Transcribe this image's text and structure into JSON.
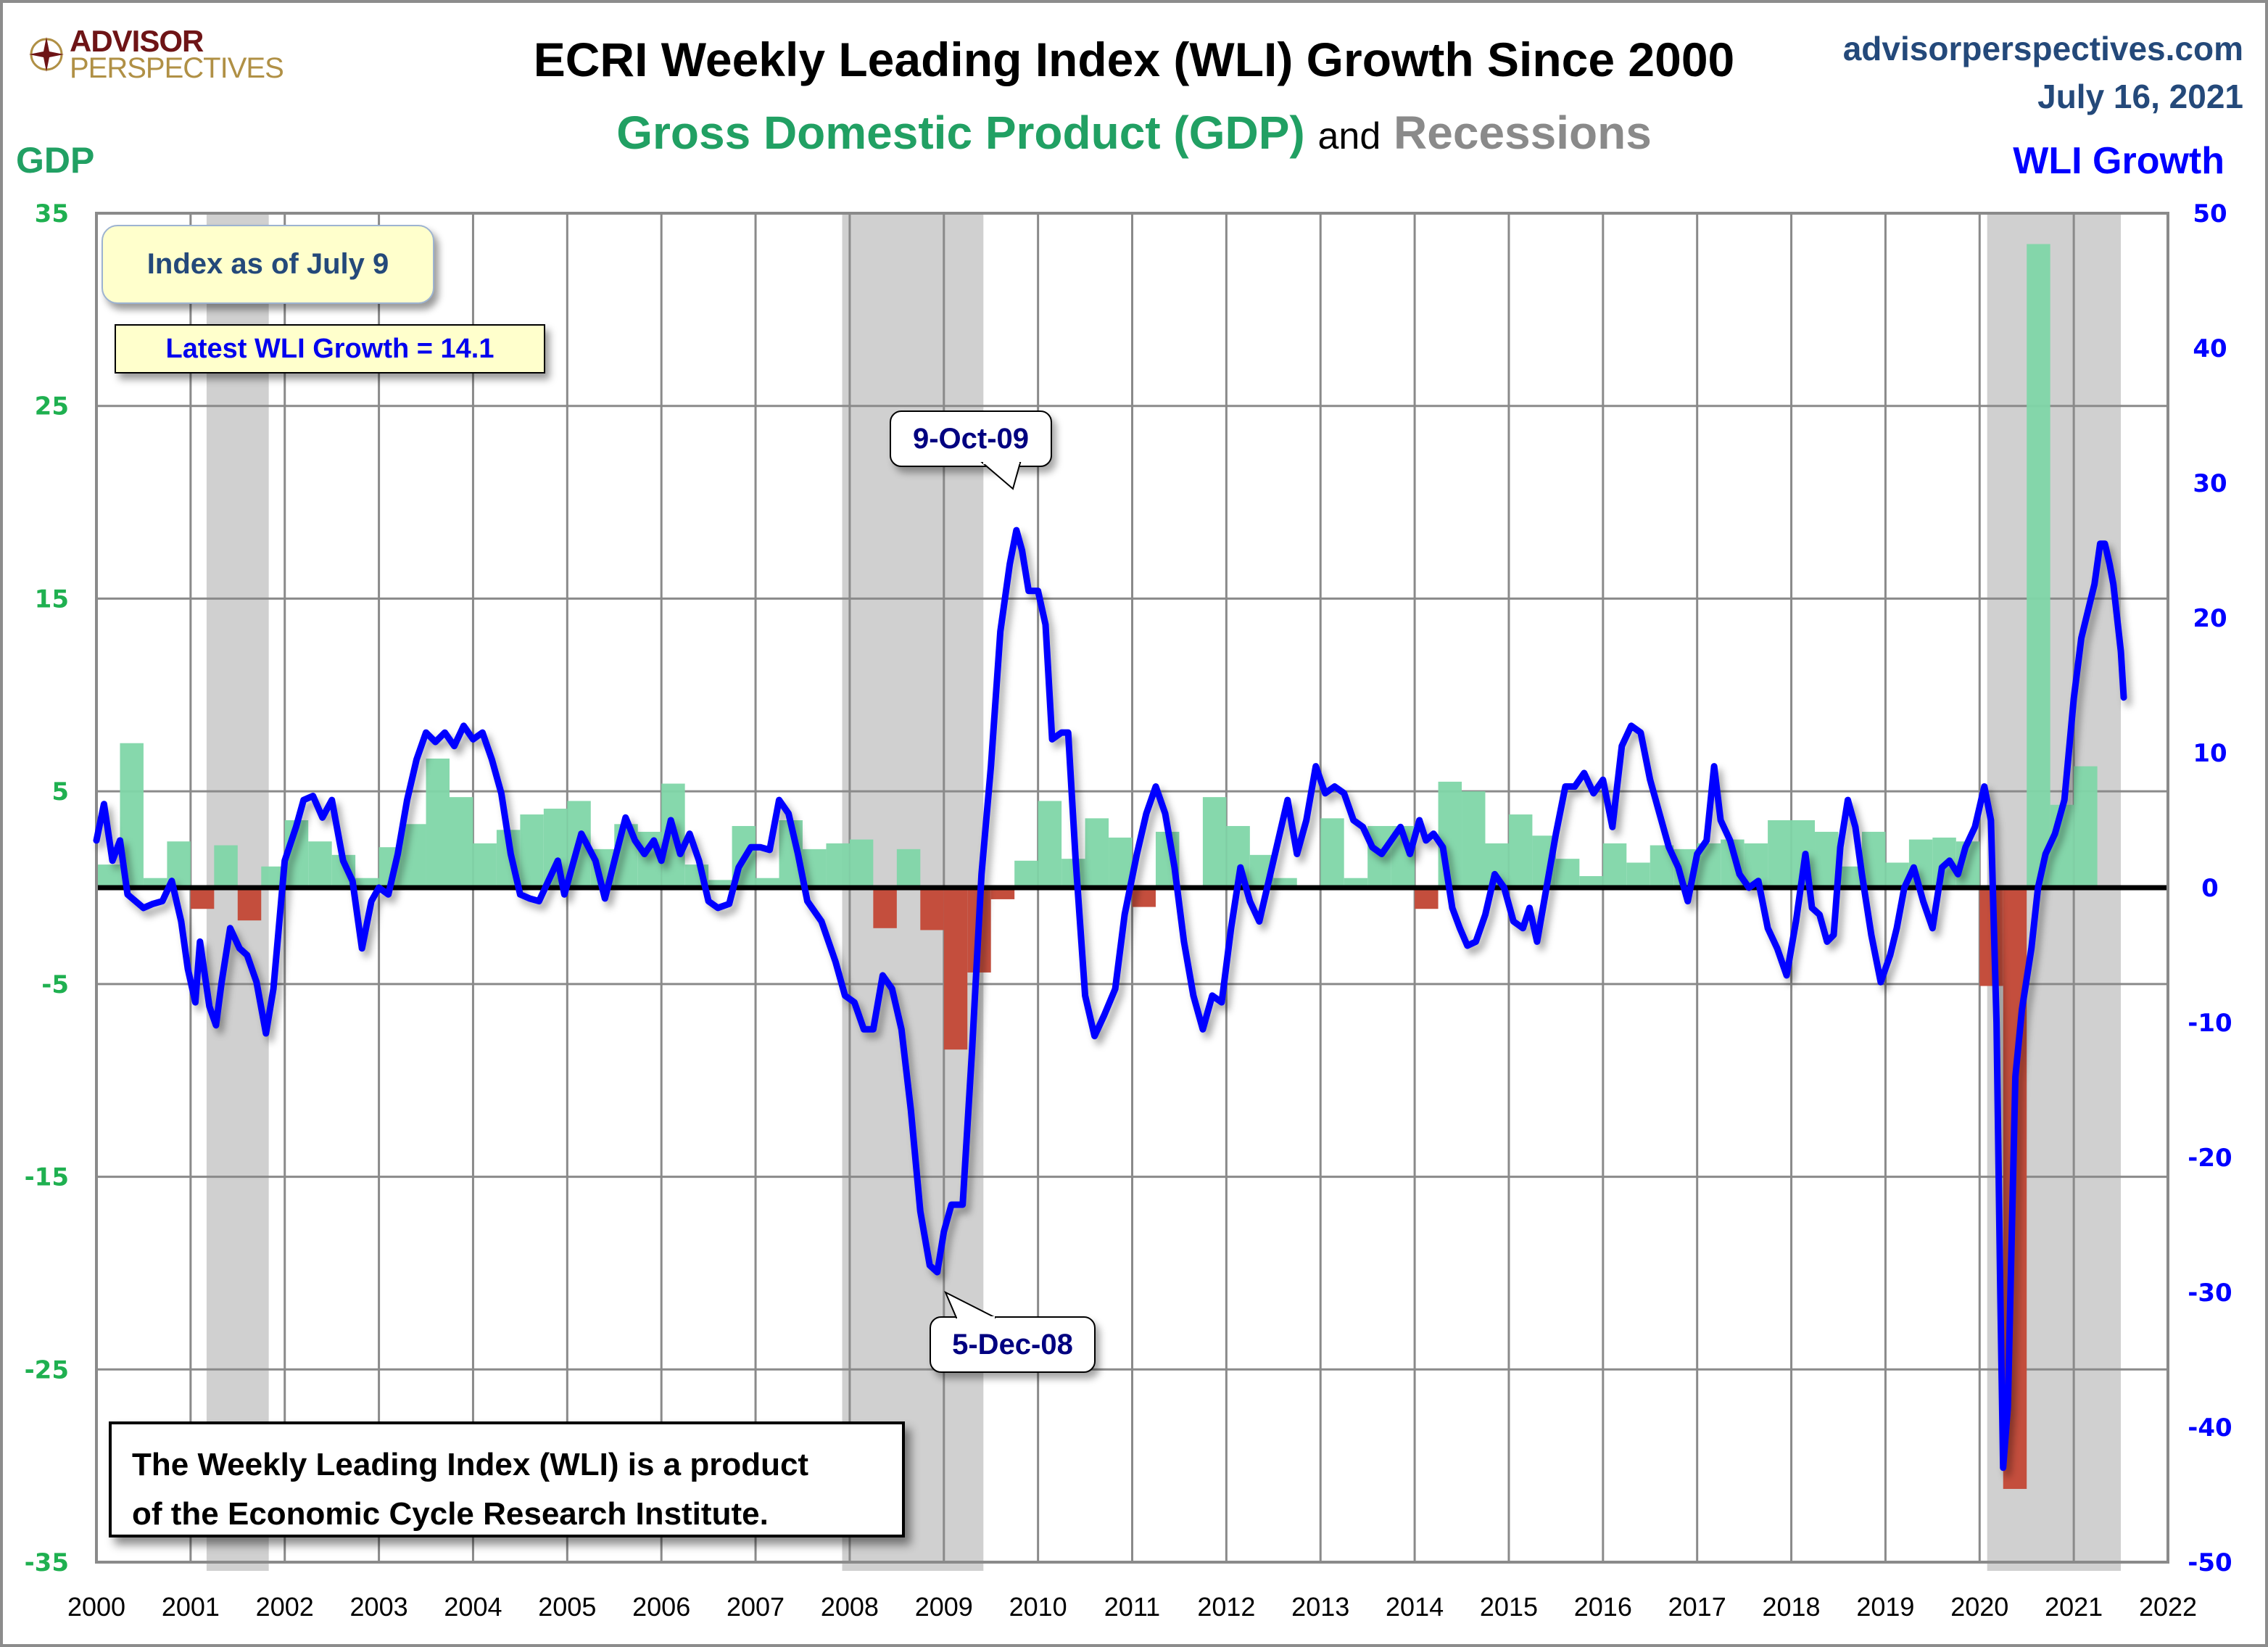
{
  "header": {
    "logo_line1": "ADVISOR",
    "logo_line2": "PERSPECTIVES",
    "title": "ECRI Weekly Leading Index (WLI) Growth Since 2000",
    "subtitle_gdp": "Gross Domestic Product (GDP)",
    "subtitle_and": "and",
    "subtitle_recessions": "Recessions",
    "site": "advisorperspectives.com",
    "date": "July 16, 2021"
  },
  "axes": {
    "left_title": "GDP",
    "right_title": "WLI Growth"
  },
  "info": {
    "index_date": "Index as of July 9",
    "latest": "Latest WLI Growth = 14.1"
  },
  "callouts": {
    "peak": "9-Oct-09",
    "trough": "5-Dec-08"
  },
  "note": {
    "line1": "The Weekly Leading Index (WLI) is a product",
    "line2": "of the Economic Cycle Research Institute."
  },
  "colors": {
    "gdp_positive": "#7fd6a8",
    "gdp_negative": "#c44e3d",
    "wli_line": "#0000ff",
    "recession": "#d0d0d0",
    "left_axis": "#1fb050",
    "right_axis": "#0000ff"
  },
  "chart_data": {
    "type": "bar+line",
    "title": "ECRI Weekly Leading Index (WLI) Growth Since 2000",
    "subtitle": "Gross Domestic Product (GDP) and Recessions",
    "x_ticks": [
      "2000",
      "2001",
      "2002",
      "2003",
      "2004",
      "2005",
      "2006",
      "2007",
      "2008",
      "2009",
      "2010",
      "2011",
      "2012",
      "2013",
      "2014",
      "2015",
      "2016",
      "2017",
      "2018",
      "2019",
      "2020",
      "2021",
      "2022"
    ],
    "xlim": [
      2000,
      2022
    ],
    "y_left": {
      "label": "GDP",
      "ylim": [
        -35,
        35
      ],
      "ticks": [
        35,
        25,
        15,
        5,
        -5,
        -15,
        -25,
        -35
      ]
    },
    "y_right": {
      "label": "WLI Growth",
      "ylim": [
        -50,
        50
      ],
      "ticks": [
        50,
        40,
        30,
        20,
        10,
        0,
        -10,
        -20,
        -30,
        -40,
        -50
      ]
    },
    "grid": true,
    "recessions": [
      [
        2001.17,
        2001.83
      ],
      [
        2007.92,
        2009.42
      ],
      [
        2020.08,
        2021.5
      ]
    ],
    "gdp_quarterly": {
      "name": "GDP",
      "start": 2000.0,
      "step": 0.25,
      "values": [
        1.2,
        7.5,
        0.5,
        2.4,
        -1.1,
        2.2,
        -1.7,
        1.1,
        3.5,
        2.4,
        1.7,
        0.5,
        2.1,
        3.3,
        6.7,
        4.7,
        2.3,
        3.0,
        3.8,
        4.1,
        4.5,
        2.0,
        3.3,
        2.9,
        5.4,
        1.2,
        0.4,
        3.2,
        0.5,
        3.5,
        2.0,
        2.3,
        2.5,
        -2.1,
        2.0,
        -2.2,
        -8.4,
        -4.4,
        -0.6,
        1.4,
        4.5,
        1.5,
        3.6,
        2.6,
        -1.0,
        2.9,
        -0.1,
        4.7,
        3.2,
        1.7,
        0.5,
        0.1,
        3.6,
        0.5,
        3.2,
        3.2,
        -1.1,
        5.5,
        5.0,
        2.3,
        3.8,
        2.7,
        1.5,
        0.6,
        2.3,
        1.3,
        2.2,
        2.0,
        2.3,
        2.5,
        2.3,
        3.5,
        3.5,
        2.9,
        1.1,
        2.9,
        1.3,
        2.5,
        2.6,
        2.4,
        -5.1,
        -31.2,
        33.4,
        4.3,
        6.3
      ]
    },
    "wli_growth": {
      "name": "WLI Growth",
      "points": [
        [
          2000.0,
          3.5
        ],
        [
          2000.08,
          6.2
        ],
        [
          2000.17,
          2.0
        ],
        [
          2000.25,
          3.5
        ],
        [
          2000.33,
          -0.5
        ],
        [
          2000.5,
          -1.5
        ],
        [
          2000.6,
          -1.2
        ],
        [
          2000.7,
          -1.0
        ],
        [
          2000.8,
          0.5
        ],
        [
          2000.9,
          -2.5
        ],
        [
          2000.97,
          -6.0
        ],
        [
          2001.05,
          -8.5
        ],
        [
          2001.1,
          -4.0
        ],
        [
          2001.2,
          -8.8
        ],
        [
          2001.27,
          -10.2
        ],
        [
          2001.33,
          -7.0
        ],
        [
          2001.42,
          -3.0
        ],
        [
          2001.52,
          -4.5
        ],
        [
          2001.6,
          -5.0
        ],
        [
          2001.7,
          -7.0
        ],
        [
          2001.8,
          -10.8
        ],
        [
          2001.88,
          -7.5
        ],
        [
          2002.0,
          2.0
        ],
        [
          2002.12,
          4.5
        ],
        [
          2002.2,
          6.5
        ],
        [
          2002.3,
          6.8
        ],
        [
          2002.4,
          5.2
        ],
        [
          2002.5,
          6.5
        ],
        [
          2002.62,
          2.0
        ],
        [
          2002.72,
          0.5
        ],
        [
          2002.82,
          -4.5
        ],
        [
          2002.92,
          -1.0
        ],
        [
          2003.0,
          0.0
        ],
        [
          2003.1,
          -0.5
        ],
        [
          2003.2,
          2.5
        ],
        [
          2003.3,
          6.5
        ],
        [
          2003.4,
          9.5
        ],
        [
          2003.5,
          11.5
        ],
        [
          2003.6,
          10.8
        ],
        [
          2003.7,
          11.5
        ],
        [
          2003.8,
          10.5
        ],
        [
          2003.9,
          12.0
        ],
        [
          2004.0,
          11.0
        ],
        [
          2004.1,
          11.5
        ],
        [
          2004.2,
          9.5
        ],
        [
          2004.3,
          7.0
        ],
        [
          2004.4,
          2.5
        ],
        [
          2004.5,
          -0.5
        ],
        [
          2004.6,
          -0.8
        ],
        [
          2004.7,
          -1.0
        ],
        [
          2004.8,
          0.5
        ],
        [
          2004.9,
          2.0
        ],
        [
          2004.97,
          -0.5
        ],
        [
          2005.05,
          1.5
        ],
        [
          2005.15,
          4.0
        ],
        [
          2005.3,
          2.0
        ],
        [
          2005.4,
          -0.8
        ],
        [
          2005.52,
          2.5
        ],
        [
          2005.62,
          5.2
        ],
        [
          2005.72,
          3.5
        ],
        [
          2005.82,
          2.5
        ],
        [
          2005.92,
          3.5
        ],
        [
          2006.0,
          2.0
        ],
        [
          2006.1,
          5.0
        ],
        [
          2006.2,
          2.5
        ],
        [
          2006.3,
          4.0
        ],
        [
          2006.4,
          2.0
        ],
        [
          2006.5,
          -1.0
        ],
        [
          2006.6,
          -1.5
        ],
        [
          2006.72,
          -1.2
        ],
        [
          2006.82,
          1.5
        ],
        [
          2006.95,
          3.0
        ],
        [
          2007.05,
          3.0
        ],
        [
          2007.15,
          2.8
        ],
        [
          2007.25,
          6.5
        ],
        [
          2007.35,
          5.5
        ],
        [
          2007.45,
          2.5
        ],
        [
          2007.55,
          -1.0
        ],
        [
          2007.7,
          -2.5
        ],
        [
          2007.85,
          -5.5
        ],
        [
          2007.95,
          -8.0
        ],
        [
          2008.05,
          -8.5
        ],
        [
          2008.15,
          -10.5
        ],
        [
          2008.25,
          -10.5
        ],
        [
          2008.35,
          -6.5
        ],
        [
          2008.45,
          -7.5
        ],
        [
          2008.55,
          -10.5
        ],
        [
          2008.65,
          -16.5
        ],
        [
          2008.75,
          -24.0
        ],
        [
          2008.85,
          -28.0
        ],
        [
          2008.93,
          -28.5
        ],
        [
          2009.0,
          -25.5
        ],
        [
          2009.08,
          -23.5
        ],
        [
          2009.2,
          -23.5
        ],
        [
          2009.3,
          -12.0
        ],
        [
          2009.4,
          1.0
        ],
        [
          2009.5,
          9.0
        ],
        [
          2009.6,
          19.0
        ],
        [
          2009.7,
          24.0
        ],
        [
          2009.77,
          26.5
        ],
        [
          2009.83,
          25.0
        ],
        [
          2009.9,
          22.0
        ],
        [
          2010.0,
          22.0
        ],
        [
          2010.08,
          19.5
        ],
        [
          2010.15,
          11.0
        ],
        [
          2010.25,
          11.5
        ],
        [
          2010.32,
          11.5
        ],
        [
          2010.4,
          2.0
        ],
        [
          2010.5,
          -8.0
        ],
        [
          2010.6,
          -11.0
        ],
        [
          2010.7,
          -9.5
        ],
        [
          2010.82,
          -7.5
        ],
        [
          2010.92,
          -2.0
        ],
        [
          2011.05,
          2.5
        ],
        [
          2011.15,
          5.5
        ],
        [
          2011.25,
          7.5
        ],
        [
          2011.35,
          5.5
        ],
        [
          2011.45,
          1.5
        ],
        [
          2011.55,
          -4.0
        ],
        [
          2011.65,
          -8.0
        ],
        [
          2011.75,
          -10.5
        ],
        [
          2011.85,
          -8.0
        ],
        [
          2011.95,
          -8.5
        ],
        [
          2012.05,
          -3.0
        ],
        [
          2012.15,
          1.5
        ],
        [
          2012.25,
          -1.0
        ],
        [
          2012.35,
          -2.5
        ],
        [
          2012.45,
          0.5
        ],
        [
          2012.55,
          3.5
        ],
        [
          2012.65,
          6.5
        ],
        [
          2012.75,
          2.5
        ],
        [
          2012.85,
          5.0
        ],
        [
          2012.95,
          9.0
        ],
        [
          2013.05,
          7.0
        ],
        [
          2013.15,
          7.5
        ],
        [
          2013.25,
          7.0
        ],
        [
          2013.35,
          5.0
        ],
        [
          2013.45,
          4.5
        ],
        [
          2013.55,
          3.0
        ],
        [
          2013.65,
          2.5
        ],
        [
          2013.75,
          3.5
        ],
        [
          2013.85,
          4.5
        ],
        [
          2013.95,
          2.5
        ],
        [
          2014.05,
          5.0
        ],
        [
          2014.12,
          3.5
        ],
        [
          2014.2,
          4.0
        ],
        [
          2014.3,
          3.0
        ],
        [
          2014.4,
          -1.5
        ],
        [
          2014.48,
          -3.0
        ],
        [
          2014.56,
          -4.3
        ],
        [
          2014.65,
          -4.0
        ],
        [
          2014.75,
          -2.0
        ],
        [
          2014.85,
          1.0
        ],
        [
          2014.95,
          0.0
        ],
        [
          2015.05,
          -2.5
        ],
        [
          2015.15,
          -3.0
        ],
        [
          2015.22,
          -1.5
        ],
        [
          2015.3,
          -4.0
        ],
        [
          2015.4,
          0.0
        ],
        [
          2015.5,
          4.0
        ],
        [
          2015.6,
          7.5
        ],
        [
          2015.7,
          7.5
        ],
        [
          2015.8,
          8.5
        ],
        [
          2015.9,
          7.0
        ],
        [
          2016.0,
          8.0
        ],
        [
          2016.1,
          4.5
        ],
        [
          2016.2,
          10.5
        ],
        [
          2016.3,
          12.0
        ],
        [
          2016.4,
          11.5
        ],
        [
          2016.5,
          8.0
        ],
        [
          2016.6,
          5.5
        ],
        [
          2016.7,
          3.0
        ],
        [
          2016.8,
          1.5
        ],
        [
          2016.9,
          -1.0
        ],
        [
          2017.0,
          2.5
        ],
        [
          2017.1,
          3.5
        ],
        [
          2017.18,
          9.0
        ],
        [
          2017.25,
          5.0
        ],
        [
          2017.35,
          3.5
        ],
        [
          2017.45,
          1.0
        ],
        [
          2017.55,
          0.0
        ],
        [
          2017.65,
          0.5
        ],
        [
          2017.75,
          -3.0
        ],
        [
          2017.85,
          -4.5
        ],
        [
          2017.95,
          -6.5
        ],
        [
          2018.05,
          -2.5
        ],
        [
          2018.15,
          2.5
        ],
        [
          2018.22,
          -1.5
        ],
        [
          2018.3,
          -2.0
        ],
        [
          2018.38,
          -4.0
        ],
        [
          2018.45,
          -3.5
        ],
        [
          2018.52,
          3.0
        ],
        [
          2018.6,
          6.5
        ],
        [
          2018.68,
          4.5
        ],
        [
          2018.75,
          1.0
        ],
        [
          2018.85,
          -3.5
        ],
        [
          2018.95,
          -7.0
        ],
        [
          2019.05,
          -5.0
        ],
        [
          2019.12,
          -3.0
        ],
        [
          2019.2,
          0.0
        ],
        [
          2019.3,
          1.5
        ],
        [
          2019.4,
          -1.0
        ],
        [
          2019.5,
          -3.0
        ],
        [
          2019.6,
          1.5
        ],
        [
          2019.68,
          2.0
        ],
        [
          2019.77,
          1.0
        ],
        [
          2019.85,
          3.0
        ],
        [
          2019.95,
          4.5
        ],
        [
          2020.05,
          7.5
        ],
        [
          2020.12,
          5.0
        ],
        [
          2020.18,
          -10.0
        ],
        [
          2020.22,
          -30.0
        ],
        [
          2020.25,
          -43.0
        ],
        [
          2020.3,
          -38.5
        ],
        [
          2020.38,
          -14.0
        ],
        [
          2020.45,
          -9.0
        ],
        [
          2020.55,
          -4.5
        ],
        [
          2020.62,
          0.0
        ],
        [
          2020.7,
          2.5
        ],
        [
          2020.8,
          4.0
        ],
        [
          2020.9,
          6.5
        ],
        [
          2021.0,
          14.0
        ],
        [
          2021.08,
          18.5
        ],
        [
          2021.15,
          20.5
        ],
        [
          2021.22,
          22.5
        ],
        [
          2021.28,
          25.5
        ],
        [
          2021.33,
          25.5
        ],
        [
          2021.38,
          24.0
        ],
        [
          2021.42,
          22.5
        ],
        [
          2021.5,
          17.5
        ],
        [
          2021.53,
          14.1
        ]
      ]
    },
    "annotations": [
      {
        "text": "9-Oct-09",
        "x": 2009.77,
        "y_right": 26.5
      },
      {
        "text": "5-Dec-08",
        "x": 2008.93,
        "y_right": -28.5
      }
    ]
  }
}
